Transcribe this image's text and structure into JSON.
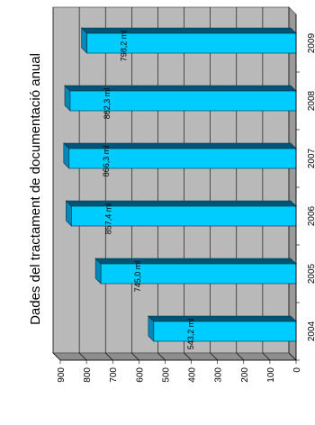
{
  "chart_data": {
    "type": "bar",
    "title": "Dades del tractament de documentació anual",
    "categories": [
      "2004",
      "2005",
      "2006",
      "2007",
      "2008",
      "2009"
    ],
    "values": [
      543.2,
      745.0,
      857.4,
      866.3,
      862.3,
      798.2
    ],
    "data_labels": [
      "543,2 ml",
      "745,0 ml",
      "857,4 ml",
      "866,3 ml",
      "862,3 ml",
      "798,2 ml"
    ],
    "value_axis_ticks": [
      "0",
      "100",
      "200",
      "300",
      "400",
      "500",
      "600",
      "700",
      "800",
      "900"
    ],
    "ylim": [
      0,
      900
    ],
    "orientation": "rotated-90",
    "style": "3d",
    "grid": true,
    "colors": {
      "bar_front": "#00ccff",
      "bar_top": "#0088bb",
      "bar_side": "#005577",
      "wall": "#b9b9b9",
      "floor": "#9a9a9a"
    }
  }
}
